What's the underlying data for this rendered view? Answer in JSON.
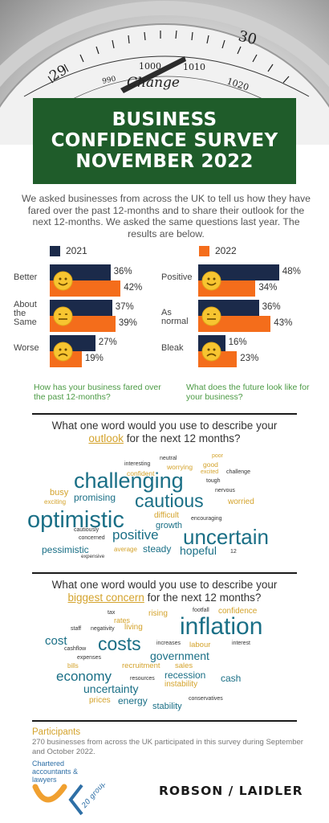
{
  "header": {
    "dial_numbers": [
      "29",
      "990",
      "1000",
      "1010",
      "1020",
      "30"
    ],
    "dial_word": "Change",
    "title_lines": [
      "BUSINESS",
      "CONFIDENCE SURVEY",
      "NOVEMBER 2022"
    ]
  },
  "intro": "We asked businesses from across the UK to tell us how they have fared over the past 12-months and to share their outlook for the next 12-months.  We asked the same questions last year. The results are below.",
  "colors": {
    "navy": "#1b2a4a",
    "orange": "#f46d1b",
    "green": "#1f5c2a",
    "question_green": "#4b9a44",
    "gold": "#d4a32c",
    "teal": "#1a6f86"
  },
  "chart_data": [
    {
      "type": "bar",
      "orientation": "horizontal",
      "categories": [
        "Better",
        "About the Same",
        "Worse"
      ],
      "series": [
        {
          "name": "2021",
          "values": [
            36,
            37,
            27
          ]
        },
        {
          "name": "2022",
          "values": [
            42,
            39,
            19
          ]
        }
      ],
      "value_labels": [
        [
          "36%",
          "37%",
          "27%"
        ],
        [
          "42%",
          "39%",
          "19%"
        ]
      ],
      "faces": [
        "happy",
        "neutral",
        "sad"
      ],
      "question": "How has your business fared over the past 12-months?"
    },
    {
      "type": "bar",
      "orientation": "horizontal",
      "categories": [
        "Positive",
        "As normal",
        "Bleak"
      ],
      "series": [
        {
          "name": "2021",
          "values": [
            48,
            36,
            16
          ]
        },
        {
          "name": "2022",
          "values": [
            34,
            43,
            23
          ]
        }
      ],
      "value_labels": [
        [
          "48%",
          "36%",
          "16%"
        ],
        [
          "34%",
          "43%",
          "23%"
        ]
      ],
      "faces": [
        "happy",
        "neutral",
        "sad"
      ],
      "question": "What does the future look like for your business?"
    }
  ],
  "outlook_section": {
    "question_pre": "What one word would you use to describe your",
    "question_highlight": "outlook",
    "question_post": "for the next 12 months?",
    "words": [
      {
        "t": "neutral",
        "c": "#333333",
        "s": 7
      },
      {
        "t": "poor",
        "c": "#d4a32c",
        "s": 7
      },
      {
        "t": "interesting",
        "c": "#333333",
        "s": 7
      },
      {
        "t": "worrying",
        "c": "#d4a32c",
        "s": 8.5
      },
      {
        "t": "good",
        "c": "#d4a32c",
        "s": 8.5
      },
      {
        "t": "confident",
        "c": "#d4a32c",
        "s": 8.5
      },
      {
        "t": "excited",
        "c": "#d4a32c",
        "s": 7
      },
      {
        "t": "challenge",
        "c": "#333333",
        "s": 7
      },
      {
        "t": "tough",
        "c": "#333333",
        "s": 7
      },
      {
        "t": "challenging",
        "c": "#1a6f86",
        "s": 27
      },
      {
        "t": "busy",
        "c": "#d4a32c",
        "s": 11
      },
      {
        "t": "nervous",
        "c": "#333333",
        "s": 7
      },
      {
        "t": "promising",
        "c": "#1a6f86",
        "s": 12
      },
      {
        "t": "cautious",
        "c": "#1a6f86",
        "s": 23
      },
      {
        "t": "exciting",
        "c": "#d4a32c",
        "s": 8
      },
      {
        "t": "worried",
        "c": "#d4a32c",
        "s": 10
      },
      {
        "t": "optimistic",
        "c": "#1a6f86",
        "s": 29
      },
      {
        "t": "difficult",
        "c": "#d4a32c",
        "s": 10
      },
      {
        "t": "encouraging",
        "c": "#333333",
        "s": 7
      },
      {
        "t": "growth",
        "c": "#1a6f86",
        "s": 11
      },
      {
        "t": "cautiously",
        "c": "#333333",
        "s": 7
      },
      {
        "t": "positive",
        "c": "#1a6f86",
        "s": 17
      },
      {
        "t": "uncertain",
        "c": "#1a6f86",
        "s": 26
      },
      {
        "t": "concerned",
        "c": "#333333",
        "s": 7
      },
      {
        "t": "pessimistic",
        "c": "#1a6f86",
        "s": 12
      },
      {
        "t": "average",
        "c": "#d4a32c",
        "s": 8
      },
      {
        "t": "steady",
        "c": "#1a6f86",
        "s": 12
      },
      {
        "t": "hopeful",
        "c": "#1a6f86",
        "s": 14
      },
      {
        "t": "12",
        "c": "#333333",
        "s": 7
      },
      {
        "t": "expensive",
        "c": "#333333",
        "s": 6.5
      }
    ]
  },
  "concern_section": {
    "question_pre": "What one word would you use to describe your",
    "question_highlight": "biggest concern",
    "question_post": "for the next 12 months?",
    "words": [
      {
        "t": "tax",
        "c": "#333333",
        "s": 7
      },
      {
        "t": "rising",
        "c": "#d4a32c",
        "s": 10
      },
      {
        "t": "footfall",
        "c": "#333333",
        "s": 7
      },
      {
        "t": "confidence",
        "c": "#d4a32c",
        "s": 10
      },
      {
        "t": "rates",
        "c": "#d4a32c",
        "s": 9
      },
      {
        "t": "staff",
        "c": "#333333",
        "s": 7
      },
      {
        "t": "negativity",
        "c": "#333333",
        "s": 7
      },
      {
        "t": "living",
        "c": "#d4a32c",
        "s": 10
      },
      {
        "t": "inflation",
        "c": "#1a6f86",
        "s": 30
      },
      {
        "t": "cost",
        "c": "#1a6f86",
        "s": 15
      },
      {
        "t": "costs",
        "c": "#1a6f86",
        "s": 23
      },
      {
        "t": "increases",
        "c": "#333333",
        "s": 7
      },
      {
        "t": "labour",
        "c": "#d4a32c",
        "s": 9.5
      },
      {
        "t": "interest",
        "c": "#333333",
        "s": 7
      },
      {
        "t": "cashflow",
        "c": "#333333",
        "s": 7
      },
      {
        "t": "government",
        "c": "#1a6f86",
        "s": 14
      },
      {
        "t": "expenses",
        "c": "#333333",
        "s": 7
      },
      {
        "t": "bills",
        "c": "#d4a32c",
        "s": 8
      },
      {
        "t": "recruitment",
        "c": "#d4a32c",
        "s": 9.5
      },
      {
        "t": "sales",
        "c": "#d4a32c",
        "s": 9.5
      },
      {
        "t": "economy",
        "c": "#1a6f86",
        "s": 17
      },
      {
        "t": "resources",
        "c": "#333333",
        "s": 7
      },
      {
        "t": "recession",
        "c": "#1a6f86",
        "s": 12
      },
      {
        "t": "cash",
        "c": "#1a6f86",
        "s": 12
      },
      {
        "t": "instability",
        "c": "#d4a32c",
        "s": 10
      },
      {
        "t": "uncertainty",
        "c": "#1a6f86",
        "s": 14
      },
      {
        "t": "prices",
        "c": "#d4a32c",
        "s": 10
      },
      {
        "t": "energy",
        "c": "#1a6f86",
        "s": 12
      },
      {
        "t": "conservatives",
        "c": "#333333",
        "s": 7
      },
      {
        "t": "stability",
        "c": "#1a6f86",
        "s": 11
      }
    ]
  },
  "participants": {
    "heading": "Participants",
    "text": "270 businesses from across the UK participated in this survey during September and October 2022."
  },
  "footer": {
    "logo_left_text": "Chartered accountants & lawyers",
    "logo_left_group": "20 group",
    "logo_right": "ROBSON / LAIDLER"
  }
}
